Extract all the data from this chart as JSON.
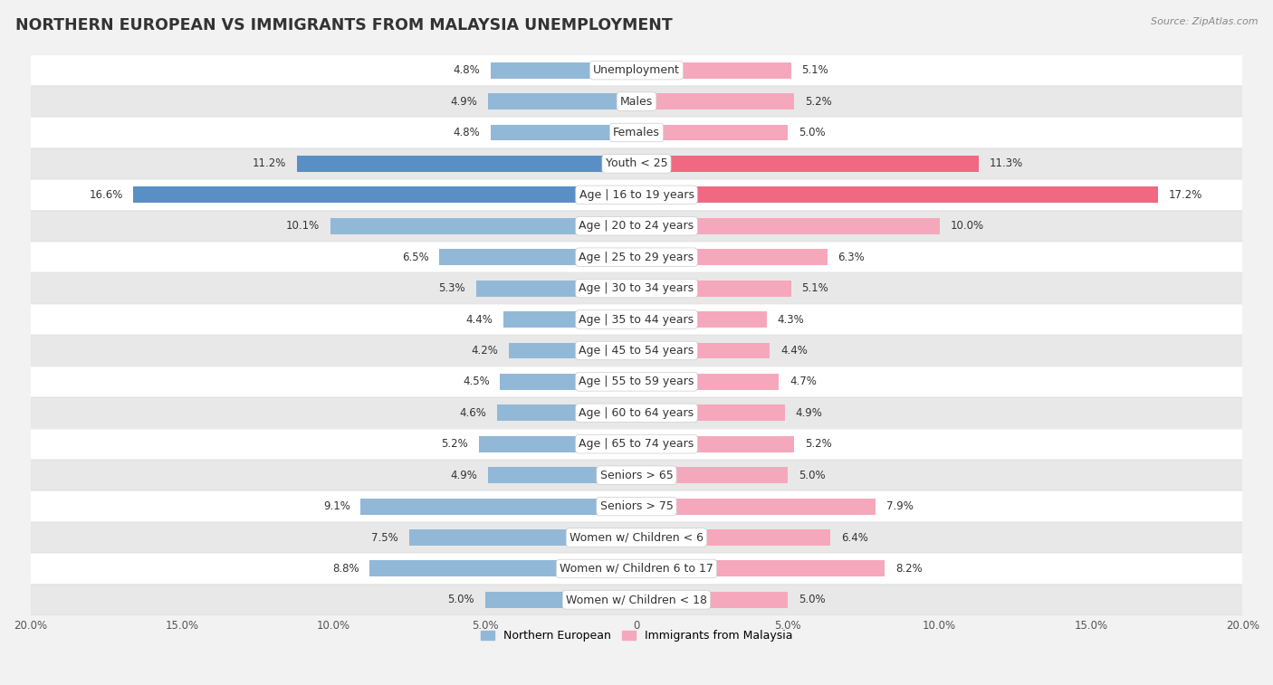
{
  "title": "NORTHERN EUROPEAN VS IMMIGRANTS FROM MALAYSIA UNEMPLOYMENT",
  "source": "Source: ZipAtlas.com",
  "categories": [
    "Unemployment",
    "Males",
    "Females",
    "Youth < 25",
    "Age | 16 to 19 years",
    "Age | 20 to 24 years",
    "Age | 25 to 29 years",
    "Age | 30 to 34 years",
    "Age | 35 to 44 years",
    "Age | 45 to 54 years",
    "Age | 55 to 59 years",
    "Age | 60 to 64 years",
    "Age | 65 to 74 years",
    "Seniors > 65",
    "Seniors > 75",
    "Women w/ Children < 6",
    "Women w/ Children 6 to 17",
    "Women w/ Children < 18"
  ],
  "left_values": [
    4.8,
    4.9,
    4.8,
    11.2,
    16.6,
    10.1,
    6.5,
    5.3,
    4.4,
    4.2,
    4.5,
    4.6,
    5.2,
    4.9,
    9.1,
    7.5,
    8.8,
    5.0
  ],
  "right_values": [
    5.1,
    5.2,
    5.0,
    11.3,
    17.2,
    10.0,
    6.3,
    5.1,
    4.3,
    4.4,
    4.7,
    4.9,
    5.2,
    5.0,
    7.9,
    6.4,
    8.2,
    5.0
  ],
  "left_color": "#92b8d8",
  "right_color": "#f5a8bc",
  "left_label": "Northern European",
  "right_label": "Immigrants from Malaysia",
  "highlight_left_color": "#5a8fc5",
  "highlight_right_color": "#f06882",
  "highlight_rows": [
    3,
    4
  ],
  "xlim": 20.0,
  "bg_color": "#f2f2f2",
  "row_bg_colors": [
    "#ffffff",
    "#e8e8e8"
  ],
  "bar_height": 0.52,
  "title_fontsize": 12.5,
  "label_fontsize": 9.0,
  "value_fontsize": 8.5,
  "axis_fontsize": 8.5,
  "source_fontsize": 8.0
}
